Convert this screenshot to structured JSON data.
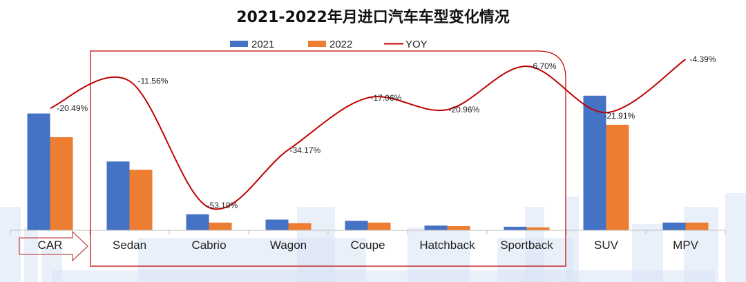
{
  "chart_data": {
    "type": "bar",
    "title": "2021-2022年月进口汽车车型变化情况",
    "categories": [
      "CAR",
      "Sedan",
      "Cabrio",
      "Wagon",
      "Coupe",
      "Hatchback",
      "Sportback",
      "SUV",
      "MPV"
    ],
    "series": [
      {
        "name": "2021",
        "type": "bar",
        "color": "#4472C4",
        "values": [
          197,
          116,
          27,
          18,
          16,
          8,
          6,
          227,
          13
        ]
      },
      {
        "name": "2022",
        "type": "bar",
        "color": "#ED7D31",
        "values": [
          157,
          102,
          13,
          12,
          13,
          7,
          5,
          178,
          13
        ]
      },
      {
        "name": "YOY",
        "type": "line",
        "color": "#C00000",
        "values": [
          -20.49,
          -11.56,
          -53.19,
          -34.17,
          -17.06,
          -20.96,
          -6.7,
          -21.91,
          -4.39
        ],
        "labels": [
          "-20.49%",
          "-11.56%",
          "-53.19%",
          "-34.17%",
          "-17.06%",
          "-20.96%",
          "-6.70%",
          "-21.91%",
          "-4.39%"
        ]
      }
    ],
    "legend_position": "top-center",
    "grid": false,
    "annotations": [
      {
        "type": "arrow",
        "text": "CAR",
        "direction": "right"
      },
      {
        "type": "bracket",
        "covers": [
          "Sedan",
          "Cabrio",
          "Wagon",
          "Coupe",
          "Hatchback",
          "Sportback"
        ]
      }
    ],
    "colors": {
      "bracket": "#C00000",
      "arrow_outline": "#C0504D",
      "axis": "#BFBFBF",
      "watermark": "#D9E4F5"
    }
  }
}
